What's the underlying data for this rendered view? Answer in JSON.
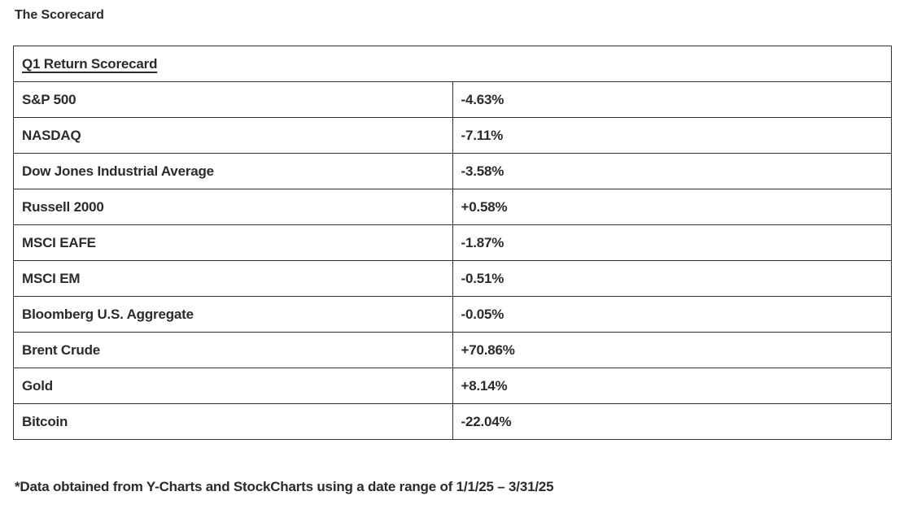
{
  "page": {
    "title": "The Scorecard",
    "footnote": "*Data obtained from Y-Charts and StockCharts using a date range of 1/1/25 – 3/31/25"
  },
  "scorecard": {
    "header": "Q1 Return Scorecard",
    "rows": [
      {
        "label": "S&P 500",
        "value": "-4.63%"
      },
      {
        "label": "NASDAQ",
        "value": "-7.11%"
      },
      {
        "label": "Dow Jones Industrial Average",
        "value": "-3.58%"
      },
      {
        "label": "Russell 2000",
        "value": "+0.58%"
      },
      {
        "label": "MSCI EAFE",
        "value": "-1.87%"
      },
      {
        "label": "MSCI EM",
        "value": "-0.51%"
      },
      {
        "label": "Bloomberg U.S. Aggregate",
        "value": "-0.05%"
      },
      {
        "label": "Brent Crude",
        "value": "+70.86%"
      },
      {
        "label": "Gold",
        "value": "+8.14%"
      },
      {
        "label": "Bitcoin",
        "value": "-22.04%"
      }
    ]
  },
  "chart_data": {
    "type": "table",
    "title": "Q1 Return Scorecard",
    "categories": [
      "S&P 500",
      "NASDAQ",
      "Dow Jones Industrial Average",
      "Russell 2000",
      "MSCI EAFE",
      "MSCI EM",
      "Bloomberg U.S. Aggregate",
      "Brent Crude",
      "Gold",
      "Bitcoin"
    ],
    "values_pct": [
      -4.63,
      -7.11,
      -3.58,
      0.58,
      -1.87,
      -0.51,
      -0.05,
      70.86,
      8.14,
      -22.04
    ],
    "footnote": "*Data obtained from Y-Charts and StockCharts using a date range of 1/1/25 – 3/31/25"
  },
  "colors": {
    "background": "#ffffff",
    "text": "#2b2b2b",
    "border": "#2f2f2f"
  }
}
